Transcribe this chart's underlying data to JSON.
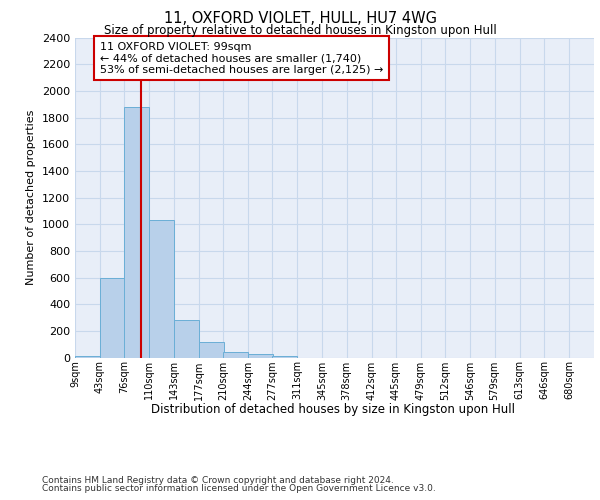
{
  "title": "11, OXFORD VIOLET, HULL, HU7 4WG",
  "subtitle": "Size of property relative to detached houses in Kingston upon Hull",
  "xlabel_bottom": "Distribution of detached houses by size in Kingston upon Hull",
  "ylabel": "Number of detached properties",
  "footer_line1": "Contains HM Land Registry data © Crown copyright and database right 2024.",
  "footer_line2": "Contains public sector information licensed under the Open Government Licence v3.0.",
  "bin_labels": [
    "9sqm",
    "43sqm",
    "76sqm",
    "110sqm",
    "143sqm",
    "177sqm",
    "210sqm",
    "244sqm",
    "277sqm",
    "311sqm",
    "345sqm",
    "378sqm",
    "412sqm",
    "445sqm",
    "479sqm",
    "512sqm",
    "546sqm",
    "579sqm",
    "613sqm",
    "646sqm",
    "680sqm"
  ],
  "bar_values": [
    15,
    600,
    1880,
    1030,
    285,
    115,
    40,
    25,
    15,
    0,
    0,
    0,
    0,
    0,
    0,
    0,
    0,
    0,
    0,
    0
  ],
  "bar_color": "#b8d0ea",
  "bar_edge_color": "#6aaed6",
  "grid_color": "#c8d8ec",
  "background_color": "#e8eef8",
  "property_sqm": 99,
  "property_line_color": "#cc0000",
  "annotation_line1": "11 OXFORD VIOLET: 99sqm",
  "annotation_line2": "← 44% of detached houses are smaller (1,740)",
  "annotation_line3": "53% of semi-detached houses are larger (2,125) →",
  "annotation_box_edgecolor": "#cc0000",
  "ylim": [
    0,
    2400
  ],
  "yticks": [
    0,
    200,
    400,
    600,
    800,
    1000,
    1200,
    1400,
    1600,
    1800,
    2000,
    2200,
    2400
  ],
  "bin_edges": [
    9,
    43,
    76,
    110,
    143,
    177,
    210,
    244,
    277,
    311,
    345,
    378,
    412,
    445,
    479,
    512,
    546,
    579,
    613,
    646,
    680
  ],
  "xmax": 714
}
